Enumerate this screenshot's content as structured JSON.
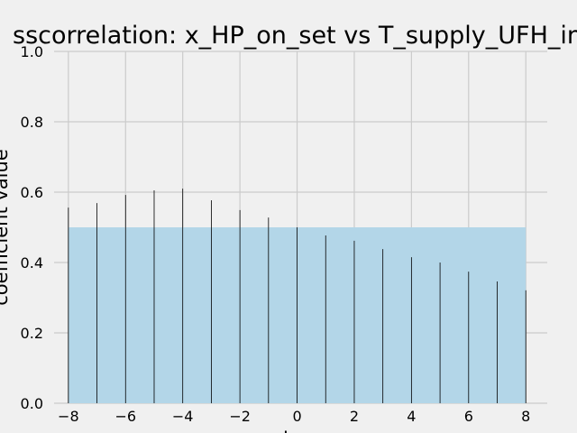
{
  "chart_data": {
    "type": "stem",
    "title": "sscorrelation: x_HP_on_set vs T_supply_UFH_in",
    "x_label": "lag",
    "y_label": "coefficient value",
    "x": [
      -8,
      -7,
      -6,
      -5,
      -4,
      -3,
      -2,
      -1,
      0,
      1,
      2,
      3,
      4,
      5,
      6,
      7,
      8
    ],
    "values": [
      0.556,
      0.569,
      0.592,
      0.605,
      0.61,
      0.577,
      0.549,
      0.528,
      0.5,
      0.477,
      0.462,
      0.438,
      0.415,
      0.4,
      0.374,
      0.346,
      0.321
    ],
    "color": "#000000",
    "band": {
      "x": [
        -8,
        8
      ],
      "y": [
        0,
        0.5
      ],
      "color": "#b3d6e8"
    },
    "xlim": [
      -8.5,
      8.75
    ],
    "ylim": [
      0,
      1
    ],
    "xticks": [
      {
        "value": -8,
        "label": "−8"
      },
      {
        "value": -6,
        "label": "−6"
      },
      {
        "value": -4,
        "label": "−4"
      },
      {
        "value": -2,
        "label": "−2"
      },
      0,
      2,
      4,
      6,
      8
    ],
    "yticks": [
      {
        "value": 0,
        "label": "0.0"
      },
      {
        "value": 0.2,
        "label": "0.2"
      },
      {
        "value": 0.4,
        "label": "0.4"
      },
      {
        "value": 0.6,
        "label": "0.6"
      },
      {
        "value": 0.8,
        "label": "0.8"
      },
      {
        "value": 1,
        "label": "1.0"
      }
    ],
    "grid": true
  }
}
